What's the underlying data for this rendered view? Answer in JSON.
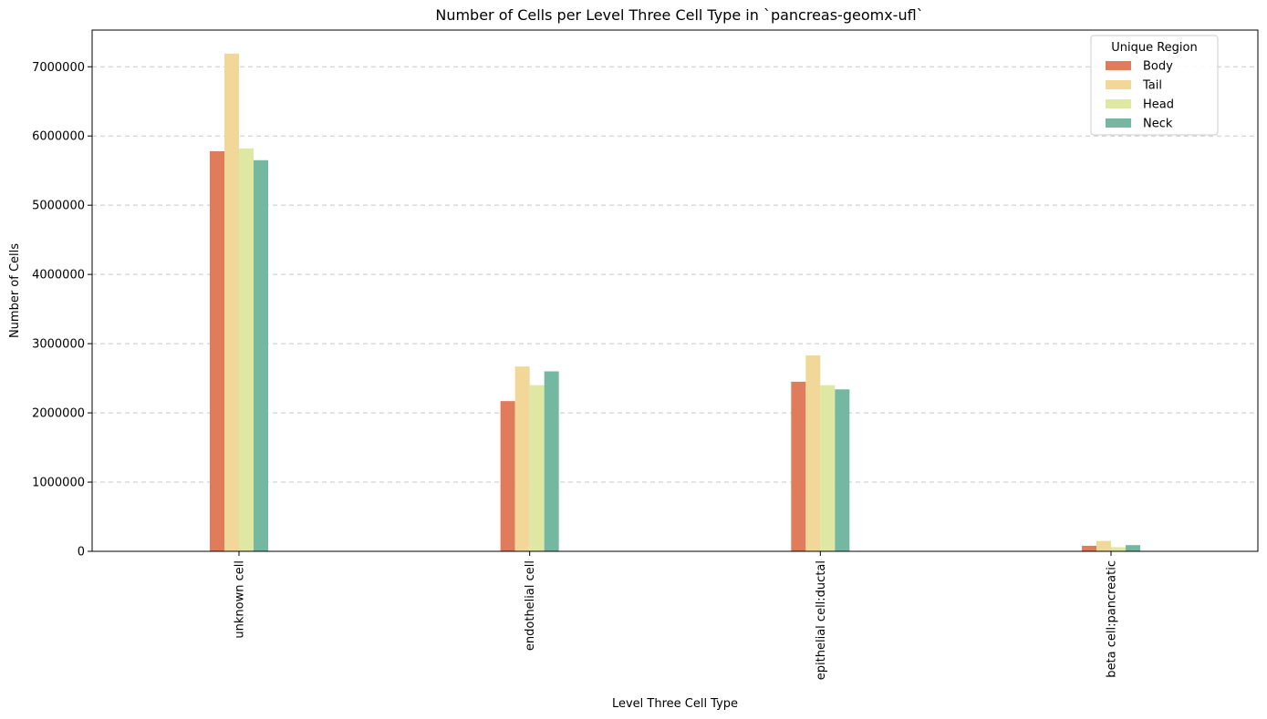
{
  "chart_data": {
    "type": "bar",
    "title": "Number of Cells per Level Three Cell Type in `pancreas-geomx-ufl`",
    "xlabel": "Level Three Cell Type",
    "ylabel": "Number of Cells",
    "categories": [
      "unknown cell",
      "endothelial cell",
      "epithelial cell:ductal",
      "beta cell:pancreatic"
    ],
    "series": [
      {
        "name": "Body",
        "color": "#e07b5c",
        "values": [
          5780000,
          2170000,
          2450000,
          80000
        ]
      },
      {
        "name": "Tail",
        "color": "#f2d898",
        "values": [
          7190000,
          2670000,
          2830000,
          150000
        ]
      },
      {
        "name": "Head",
        "color": "#dfe8a3",
        "values": [
          5820000,
          2400000,
          2400000,
          60000
        ]
      },
      {
        "name": "Neck",
        "color": "#75b8a2",
        "values": [
          5650000,
          2600000,
          2340000,
          90000
        ]
      }
    ],
    "ylim": [
      0,
      7530000
    ],
    "yticks": [
      0,
      1000000,
      2000000,
      3000000,
      4000000,
      5000000,
      6000000,
      7000000
    ],
    "ytick_labels": [
      "0",
      "1000000",
      "2000000",
      "3000000",
      "4000000",
      "5000000",
      "6000000",
      "7000000"
    ],
    "grid": "horizontal dashed",
    "legend": {
      "title": "Unique Region",
      "placement": "top-right"
    }
  }
}
